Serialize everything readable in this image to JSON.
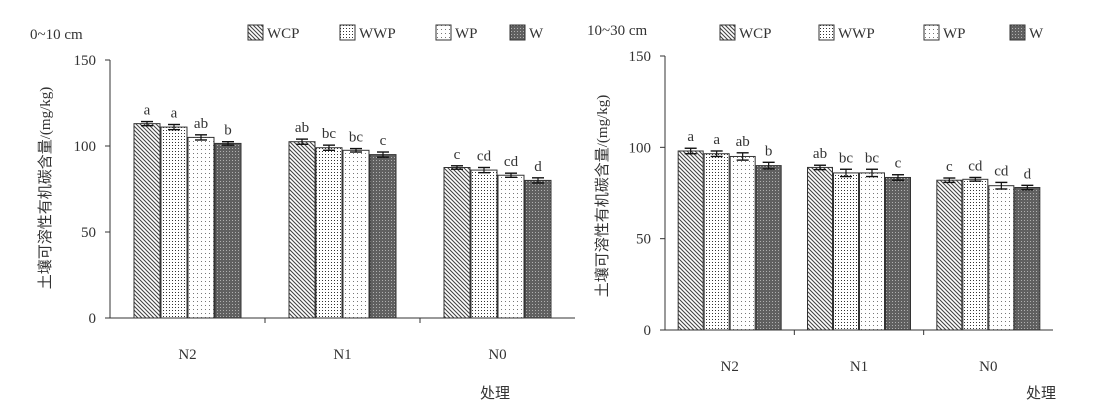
{
  "legend": [
    "WCP",
    "WWP",
    "WP",
    "W"
  ],
  "chart_data": [
    {
      "type": "bar",
      "title": "0~10 cm",
      "ylabel": "土壤可溶性有机碳含量/(mg/kg)",
      "xlabel": "处理",
      "categories": [
        "N2",
        "N1",
        "N0"
      ],
      "ylim": [
        0,
        150
      ],
      "yticks": [
        "0",
        "50",
        "100",
        "150"
      ],
      "series": [
        {
          "name": "WCP",
          "values": [
            113,
            102.5,
            87.5
          ],
          "errors": [
            1.2,
            1.5,
            1.0
          ],
          "letters": [
            "a",
            "ab",
            "c"
          ]
        },
        {
          "name": "WWP",
          "values": [
            111,
            99,
            86
          ],
          "errors": [
            1.5,
            1.5,
            1.5
          ],
          "letters": [
            "a",
            "bc",
            "cd"
          ]
        },
        {
          "name": "WP",
          "values": [
            105,
            97.5,
            83
          ],
          "errors": [
            1.5,
            1.0,
            1.2
          ],
          "letters": [
            "ab",
            "bc",
            "cd"
          ]
        },
        {
          "name": "W",
          "values": [
            101.5,
            95,
            80
          ],
          "errors": [
            1.0,
            1.5,
            1.5
          ],
          "letters": [
            "b",
            "c",
            "d"
          ]
        }
      ]
    },
    {
      "type": "bar",
      "title": "10~30 cm",
      "ylabel": "土壤可溶性有机碳含量/(mg/kg)",
      "xlabel": "处理",
      "categories": [
        "N2",
        "N1",
        "N0"
      ],
      "ylim": [
        0,
        150
      ],
      "yticks": [
        "0",
        "50",
        "100",
        "150"
      ],
      "series": [
        {
          "name": "WCP",
          "values": [
            98,
            89,
            82
          ],
          "errors": [
            1.5,
            1.2,
            1.2
          ],
          "letters": [
            "a",
            "ab",
            "c"
          ]
        },
        {
          "name": "WWP",
          "values": [
            96.5,
            86,
            82.5
          ],
          "errors": [
            1.5,
            2.0,
            1.0
          ],
          "letters": [
            "a",
            "bc",
            "cd"
          ]
        },
        {
          "name": "WP",
          "values": [
            95,
            86,
            79
          ],
          "errors": [
            2.0,
            2.0,
            1.8
          ],
          "letters": [
            "ab",
            "bc",
            "cd"
          ]
        },
        {
          "name": "W",
          "values": [
            90,
            83.5,
            78
          ],
          "errors": [
            1.8,
            1.5,
            1.2
          ],
          "letters": [
            "b",
            "c",
            "d"
          ]
        }
      ]
    }
  ]
}
